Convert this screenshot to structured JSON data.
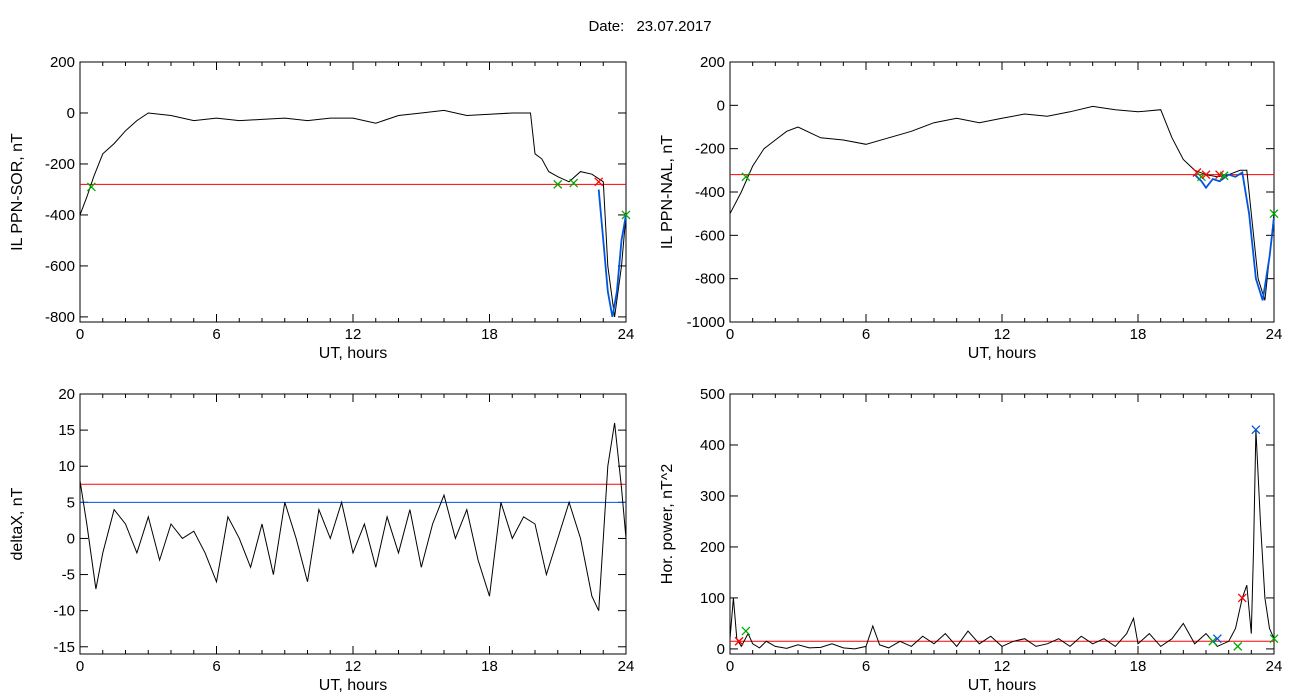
{
  "header": {
    "date_label": "Date:",
    "date_value": "23.07.2017"
  },
  "chart_data": [
    {
      "type": "line",
      "panel": "top-left",
      "ylabel": "IL PPN-SOR, nT",
      "xlabel": "UT, hours",
      "xlim": [
        0,
        24
      ],
      "ylim": [
        -820,
        200
      ],
      "xticks": [
        0,
        6,
        12,
        18,
        24
      ],
      "xtick_labels": [
        "0",
        "6",
        "12",
        "18",
        "24"
      ],
      "yticks": [
        200,
        0,
        -200,
        -400,
        -600,
        -800
      ],
      "ytick_labels": [
        "200",
        "0",
        "-200",
        "-400",
        "-600",
        "-800"
      ],
      "series": [
        {
          "color": "#000000",
          "x": [
            0,
            0.3,
            0.6,
            1.0,
            1.5,
            2.0,
            2.5,
            3.0,
            4.0,
            5.0,
            6.0,
            7.0,
            8.0,
            9.0,
            10.0,
            11.0,
            12.0,
            13.0,
            14.0,
            15.0,
            16.0,
            17.0,
            18.0,
            19.0,
            19.8,
            20.0,
            20.3,
            20.6,
            21.0,
            21.5,
            22.0,
            22.5,
            23.0,
            23.2,
            23.5,
            23.8,
            24.0
          ],
          "values": [
            -400,
            -330,
            -250,
            -160,
            -120,
            -70,
            -30,
            0,
            -10,
            -30,
            -20,
            -30,
            -25,
            -20,
            -30,
            -20,
            -20,
            -40,
            -10,
            0,
            10,
            -10,
            -5,
            0,
            0,
            -160,
            -180,
            -230,
            -250,
            -270,
            -230,
            -240,
            -270,
            -600,
            -800,
            -600,
            -400
          ]
        },
        {
          "color": "#0055dd",
          "x": [
            22.8,
            23.0,
            23.2,
            23.4,
            23.6,
            23.8,
            24.0
          ],
          "values": [
            -300,
            -500,
            -700,
            -800,
            -700,
            -500,
            -400
          ]
        }
      ],
      "hlines": [
        {
          "y": -280,
          "color": "#ff0000"
        }
      ],
      "markers": [
        {
          "x": 0.5,
          "y": -290,
          "color": "#00aa00"
        },
        {
          "x": 21.0,
          "y": -280,
          "color": "#00aa00"
        },
        {
          "x": 21.7,
          "y": -275,
          "color": "#00aa00"
        },
        {
          "x": 22.8,
          "y": -270,
          "color": "#ff0000"
        },
        {
          "x": 24.0,
          "y": -400,
          "color": "#00aa00"
        }
      ]
    },
    {
      "type": "line",
      "panel": "top-right",
      "ylabel": "IL PPN-NAL, nT",
      "xlabel": "UT, hours",
      "xlim": [
        0,
        24
      ],
      "ylim": [
        -1000,
        200
      ],
      "xticks": [
        0,
        6,
        12,
        18,
        24
      ],
      "xtick_labels": [
        "0",
        "6",
        "12",
        "18",
        "24"
      ],
      "yticks": [
        200,
        0,
        -200,
        -400,
        -600,
        -800,
        -1000
      ],
      "ytick_labels": [
        "200",
        "0",
        "-200",
        "-400",
        "-600",
        "-800",
        "-1000"
      ],
      "series": [
        {
          "color": "#000000",
          "x": [
            0,
            0.5,
            1.0,
            1.5,
            2.0,
            2.5,
            3.0,
            4.0,
            5.0,
            6.0,
            7.0,
            8.0,
            9.0,
            10.0,
            11.0,
            12.0,
            13.0,
            14.0,
            15.0,
            16.0,
            17.0,
            18.0,
            19.0,
            19.5,
            20.0,
            20.5,
            21.0,
            21.5,
            22.0,
            22.5,
            22.8,
            23.0,
            23.3,
            23.6,
            24.0
          ],
          "values": [
            -500,
            -400,
            -280,
            -200,
            -160,
            -120,
            -100,
            -150,
            -160,
            -180,
            -150,
            -120,
            -80,
            -60,
            -80,
            -60,
            -40,
            -50,
            -30,
            -5,
            -20,
            -30,
            -20,
            -150,
            -250,
            -300,
            -320,
            -330,
            -320,
            -300,
            -300,
            -500,
            -800,
            -900,
            -500
          ]
        },
        {
          "color": "#0055dd",
          "x": [
            20.5,
            20.8,
            21.0,
            21.3,
            21.6,
            22.0,
            22.3,
            22.6,
            22.9,
            23.2,
            23.5,
            23.8,
            24.0
          ],
          "values": [
            -320,
            -350,
            -380,
            -340,
            -350,
            -320,
            -330,
            -310,
            -500,
            -800,
            -900,
            -700,
            -520
          ]
        }
      ],
      "hlines": [
        {
          "y": -320,
          "color": "#ff0000"
        }
      ],
      "markers": [
        {
          "x": 0.7,
          "y": -330,
          "color": "#00aa00"
        },
        {
          "x": 20.6,
          "y": -310,
          "color": "#ff0000"
        },
        {
          "x": 20.8,
          "y": -330,
          "color": "#00aa00"
        },
        {
          "x": 21.0,
          "y": -320,
          "color": "#ff0000"
        },
        {
          "x": 21.6,
          "y": -320,
          "color": "#ff0000"
        },
        {
          "x": 21.8,
          "y": -325,
          "color": "#00aa00"
        },
        {
          "x": 24.0,
          "y": -500,
          "color": "#00aa00"
        }
      ]
    },
    {
      "type": "line",
      "panel": "bottom-left",
      "ylabel": "deltaX, nT",
      "xlabel": "UT, hours",
      "xlim": [
        0,
        24
      ],
      "ylim": [
        -16,
        20
      ],
      "xticks": [
        0,
        6,
        12,
        18,
        24
      ],
      "xtick_labels": [
        "0",
        "6",
        "12",
        "18",
        "24"
      ],
      "yticks": [
        20,
        15,
        10,
        5,
        0,
        -5,
        -10,
        -15
      ],
      "ytick_labels": [
        "20",
        "15",
        "10",
        "5",
        "0",
        "-5",
        "-10",
        "-15"
      ],
      "series": [
        {
          "color": "#000000",
          "x": [
            0,
            0.3,
            0.7,
            1.0,
            1.5,
            2.0,
            2.5,
            3.0,
            3.5,
            4.0,
            4.5,
            5.0,
            5.5,
            6.0,
            6.5,
            7.0,
            7.5,
            8.0,
            8.5,
            9.0,
            9.5,
            10.0,
            10.5,
            11.0,
            11.5,
            12.0,
            12.5,
            13.0,
            13.5,
            14.0,
            14.5,
            15.0,
            15.5,
            16.0,
            16.5,
            17.0,
            17.5,
            18.0,
            18.5,
            19.0,
            19.5,
            20.0,
            20.5,
            21.0,
            21.5,
            22.0,
            22.5,
            22.8,
            23.0,
            23.2,
            23.5,
            23.8,
            24.0
          ],
          "values": [
            8,
            2,
            -7,
            -2,
            4,
            2,
            -2,
            3,
            -3,
            2,
            0,
            1,
            -2,
            -6,
            3,
            0,
            -4,
            2,
            -5,
            5,
            0,
            -6,
            4,
            0,
            5,
            -2,
            2,
            -4,
            3,
            -2,
            4,
            -4,
            2,
            6,
            0,
            4,
            -3,
            -8,
            5,
            0,
            3,
            2,
            -5,
            0,
            5,
            0,
            -8,
            -10,
            0,
            10,
            16,
            7,
            0
          ]
        }
      ],
      "hlines": [
        {
          "y": 7.5,
          "color": "#ff0000"
        },
        {
          "y": 5,
          "color": "#0055dd"
        }
      ],
      "markers": []
    },
    {
      "type": "line",
      "panel": "bottom-right",
      "ylabel": "Hor. power, nT^2",
      "xlabel": "UT, hours",
      "xlim": [
        0,
        24
      ],
      "ylim": [
        -10,
        500
      ],
      "xticks": [
        0,
        6,
        12,
        18,
        24
      ],
      "xtick_labels": [
        "0",
        "6",
        "12",
        "18",
        "24"
      ],
      "yticks": [
        500,
        400,
        300,
        200,
        100,
        0
      ],
      "ytick_labels": [
        "500",
        "400",
        "300",
        "200",
        "100",
        "0"
      ],
      "series": [
        {
          "color": "#000000",
          "x": [
            0,
            0.15,
            0.3,
            0.5,
            0.8,
            1.0,
            1.3,
            1.6,
            2.0,
            2.5,
            3.0,
            3.5,
            4.0,
            4.5,
            5.0,
            5.5,
            6.0,
            6.3,
            6.6,
            7.0,
            7.5,
            8.0,
            8.5,
            9.0,
            9.5,
            10.0,
            10.5,
            11.0,
            11.5,
            12.0,
            12.5,
            13.0,
            13.5,
            14.0,
            14.5,
            15.0,
            15.5,
            16.0,
            16.5,
            17.0,
            17.5,
            17.8,
            18.0,
            18.5,
            19.0,
            19.5,
            20.0,
            20.5,
            21.0,
            21.5,
            22.0,
            22.3,
            22.6,
            22.8,
            23.0,
            23.1,
            23.2,
            23.4,
            23.6,
            23.8,
            24.0
          ],
          "values": [
            20,
            100,
            20,
            5,
            30,
            10,
            2,
            15,
            5,
            1,
            8,
            2,
            3,
            10,
            2,
            0,
            5,
            45,
            8,
            2,
            15,
            5,
            25,
            10,
            30,
            5,
            35,
            10,
            25,
            5,
            15,
            20,
            5,
            10,
            20,
            5,
            25,
            10,
            20,
            5,
            30,
            60,
            10,
            30,
            5,
            20,
            50,
            10,
            30,
            5,
            15,
            40,
            100,
            125,
            30,
            200,
            430,
            250,
            100,
            40,
            20
          ]
        }
      ],
      "hlines": [
        {
          "y": 15,
          "color": "#ff0000"
        }
      ],
      "markers": [
        {
          "x": 0.4,
          "y": 15,
          "color": "#ff0000"
        },
        {
          "x": 0.7,
          "y": 35,
          "color": "#00aa00"
        },
        {
          "x": 21.3,
          "y": 15,
          "color": "#00aa00"
        },
        {
          "x": 21.5,
          "y": 20,
          "color": "#0055dd"
        },
        {
          "x": 22.4,
          "y": 5,
          "color": "#00aa00"
        },
        {
          "x": 22.6,
          "y": 100,
          "color": "#ff0000"
        },
        {
          "x": 23.2,
          "y": 430,
          "color": "#0055dd"
        },
        {
          "x": 24.0,
          "y": 20,
          "color": "#00aa00"
        }
      ]
    }
  ]
}
